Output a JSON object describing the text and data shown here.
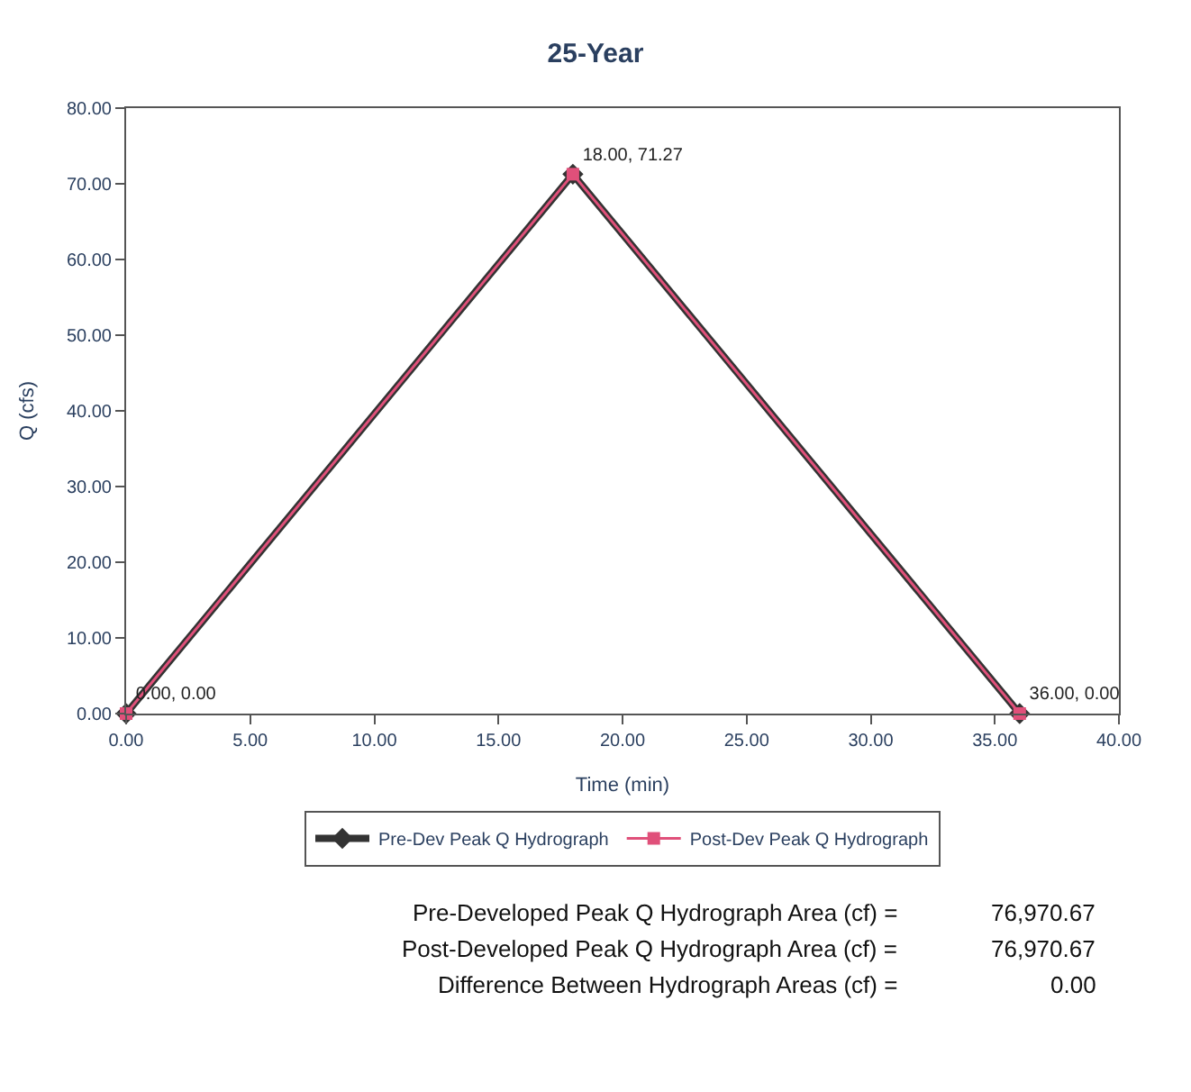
{
  "chart_data": {
    "type": "line",
    "title": "25-Year",
    "xlabel": "Time (min)",
    "ylabel": "Q (cfs)",
    "x": [
      0,
      18,
      36
    ],
    "series": [
      {
        "name": "Pre-Dev Peak Q Hydrograph",
        "color": "#333333",
        "values": [
          0,
          71.27,
          0
        ],
        "marker": "diamond"
      },
      {
        "name": "Post-Dev Peak Q Hydrograph",
        "color": "#e0507a",
        "values": [
          0,
          71.27,
          0
        ],
        "marker": "square",
        "value_labels": [
          "0.00, 0.00",
          "18.00, 71.27",
          "36.00, 0.00"
        ]
      }
    ],
    "xlim": [
      0,
      40
    ],
    "xticks": [
      {
        "value": 0,
        "label": "0.00"
      },
      {
        "value": 5,
        "label": "5.00"
      },
      {
        "value": 10,
        "label": "10.00"
      },
      {
        "value": 15,
        "label": "15.00"
      },
      {
        "value": 20,
        "label": "20.00"
      },
      {
        "value": 25,
        "label": "25.00"
      },
      {
        "value": 30,
        "label": "30.00"
      },
      {
        "value": 35,
        "label": "35.00"
      },
      {
        "value": 40,
        "label": "40.00"
      }
    ],
    "ylim": [
      0,
      80
    ],
    "yticks": [
      {
        "value": 0,
        "label": "0.00"
      },
      {
        "value": 10,
        "label": "10.00"
      },
      {
        "value": 20,
        "label": "20.00"
      },
      {
        "value": 30,
        "label": "30.00"
      },
      {
        "value": 40,
        "label": "40.00"
      },
      {
        "value": 50,
        "label": "50.00"
      },
      {
        "value": 60,
        "label": "60.00"
      },
      {
        "value": 70,
        "label": "70.00"
      },
      {
        "value": 80,
        "label": "80.00"
      }
    ],
    "legend": "bottom",
    "line_style": "solid",
    "annotations": [
      "Pre-Developed Peak Q Hydrograph Area (cf) =",
      "76,970.67",
      "Post-Developed Peak Q Hydrograph Area (cf) =",
      "76,970.67",
      "Difference Between Hydrograph Areas (cf) =",
      "0.00"
    ]
  }
}
